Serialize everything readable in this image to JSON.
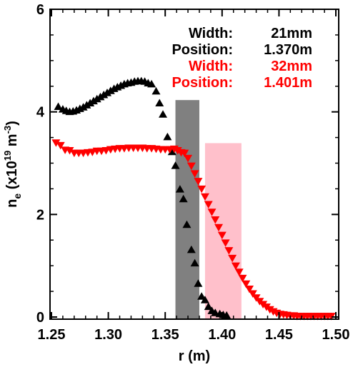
{
  "chart_data": {
    "type": "scatter",
    "xlabel": "r (m)",
    "ylabel_main": "n",
    "ylabel_sub": "e",
    "ylabel_rest": " (x10",
    "ylabel_exp": "19",
    "ylabel_unit": " m",
    "ylabel_unit_exp": "-3",
    "ylabel_close": ")",
    "xlim": [
      1.25,
      1.5
    ],
    "ylim": [
      0,
      6
    ],
    "xticks": [
      "1.25",
      "1.30",
      "1.35",
      "1.40",
      "1.45",
      "1.50"
    ],
    "yticks": [
      "0",
      "2",
      "4",
      "6"
    ],
    "grid": false,
    "bands": [
      {
        "x_start": 1.359,
        "x_end": 1.38,
        "y_top": 4.23,
        "color": "#808080"
      },
      {
        "x_start": 1.385,
        "x_end": 1.417,
        "y_top": 3.39,
        "color": "#ffc0cb"
      }
    ],
    "series": [
      {
        "marker": "triangle-up",
        "color": "#000000",
        "points": [
          [
            1.256,
            4.1
          ],
          [
            1.26,
            4.05
          ],
          [
            1.263,
            4.02
          ],
          [
            1.266,
            4.0
          ],
          [
            1.269,
            4.01
          ],
          [
            1.272,
            4.03
          ],
          [
            1.275,
            4.06
          ],
          [
            1.278,
            4.09
          ],
          [
            1.281,
            4.13
          ],
          [
            1.284,
            4.17
          ],
          [
            1.287,
            4.21
          ],
          [
            1.29,
            4.25
          ],
          [
            1.293,
            4.29
          ],
          [
            1.296,
            4.33
          ],
          [
            1.299,
            4.37
          ],
          [
            1.302,
            4.41
          ],
          [
            1.305,
            4.45
          ],
          [
            1.308,
            4.48
          ],
          [
            1.311,
            4.51
          ],
          [
            1.314,
            4.54
          ],
          [
            1.317,
            4.56
          ],
          [
            1.32,
            4.57
          ],
          [
            1.323,
            4.59
          ],
          [
            1.326,
            4.6
          ],
          [
            1.329,
            4.6
          ],
          [
            1.332,
            4.59
          ],
          [
            1.335,
            4.56
          ],
          [
            1.338,
            4.54
          ],
          [
            1.342,
            4.4
          ],
          [
            1.345,
            4.17
          ],
          [
            1.348,
            3.95
          ],
          [
            1.352,
            3.51
          ],
          [
            1.356,
            3.22
          ],
          [
            1.359,
            2.95
          ],
          [
            1.363,
            2.49
          ],
          [
            1.366,
            2.3
          ],
          [
            1.369,
            1.8
          ],
          [
            1.373,
            1.31
          ],
          [
            1.376,
            1.05
          ],
          [
            1.379,
            0.65
          ],
          [
            1.382,
            0.4
          ],
          [
            1.385,
            0.33
          ],
          [
            1.388,
            0.2
          ],
          [
            1.391,
            0.12
          ],
          [
            1.394,
            0.08
          ],
          [
            1.398,
            0.06
          ],
          [
            1.401,
            0.04
          ],
          [
            1.404,
            0.03
          ]
        ]
      },
      {
        "marker": "triangle-down",
        "color": "#ff0000",
        "points": [
          [
            1.254,
            3.4
          ],
          [
            1.258,
            3.35
          ],
          [
            1.262,
            3.26
          ],
          [
            1.266,
            3.25
          ],
          [
            1.27,
            3.2
          ],
          [
            1.274,
            3.2
          ],
          [
            1.278,
            3.2
          ],
          [
            1.282,
            3.21
          ],
          [
            1.286,
            3.22
          ],
          [
            1.29,
            3.24
          ],
          [
            1.294,
            3.24
          ],
          [
            1.298,
            3.25
          ],
          [
            1.302,
            3.27
          ],
          [
            1.306,
            3.28
          ],
          [
            1.31,
            3.29
          ],
          [
            1.314,
            3.29
          ],
          [
            1.318,
            3.3
          ],
          [
            1.322,
            3.3
          ],
          [
            1.326,
            3.3
          ],
          [
            1.33,
            3.3
          ],
          [
            1.334,
            3.29
          ],
          [
            1.338,
            3.29
          ],
          [
            1.342,
            3.28
          ],
          [
            1.346,
            3.27
          ],
          [
            1.35,
            3.27
          ],
          [
            1.354,
            3.27
          ],
          [
            1.358,
            3.28
          ],
          [
            1.361,
            3.25
          ],
          [
            1.364,
            3.21
          ],
          [
            1.367,
            3.2
          ],
          [
            1.37,
            3.1
          ],
          [
            1.373,
            2.95
          ],
          [
            1.376,
            2.8
          ],
          [
            1.379,
            2.65
          ],
          [
            1.382,
            2.5
          ],
          [
            1.385,
            2.35
          ],
          [
            1.388,
            2.2
          ],
          [
            1.391,
            2.05
          ],
          [
            1.394,
            1.9
          ],
          [
            1.397,
            1.75
          ],
          [
            1.4,
            1.6
          ],
          [
            1.403,
            1.45
          ],
          [
            1.406,
            1.3
          ],
          [
            1.409,
            1.15
          ],
          [
            1.412,
            1.0
          ],
          [
            1.415,
            0.88
          ],
          [
            1.418,
            0.76
          ],
          [
            1.421,
            0.65
          ],
          [
            1.424,
            0.55
          ],
          [
            1.427,
            0.46
          ],
          [
            1.43,
            0.38
          ],
          [
            1.433,
            0.31
          ],
          [
            1.436,
            0.25
          ],
          [
            1.439,
            0.2
          ],
          [
            1.442,
            0.15
          ],
          [
            1.445,
            0.11
          ],
          [
            1.448,
            0.08
          ],
          [
            1.451,
            0.06
          ],
          [
            1.454,
            0.05
          ],
          [
            1.457,
            0.04
          ],
          [
            1.46,
            0.03
          ],
          [
            1.463,
            0.03
          ],
          [
            1.466,
            0.02
          ],
          [
            1.469,
            0.02
          ],
          [
            1.472,
            0.02
          ],
          [
            1.475,
            0.02
          ],
          [
            1.478,
            0.02
          ],
          [
            1.481,
            0.02
          ],
          [
            1.484,
            0.02
          ],
          [
            1.487,
            0.02
          ],
          [
            1.49,
            0.02
          ],
          [
            1.493,
            0.02
          ],
          [
            1.496,
            0.02
          ]
        ]
      }
    ],
    "annotations": [
      {
        "label": "Width:",
        "value": "21mm",
        "color": "#000000"
      },
      {
        "label": "Position:",
        "value": "1.370m",
        "color": "#000000"
      },
      {
        "label": "Width:",
        "value": "32mm",
        "color": "#ff0000"
      },
      {
        "label": "Position:",
        "value": "1.401m",
        "color": "#ff0000"
      }
    ]
  }
}
